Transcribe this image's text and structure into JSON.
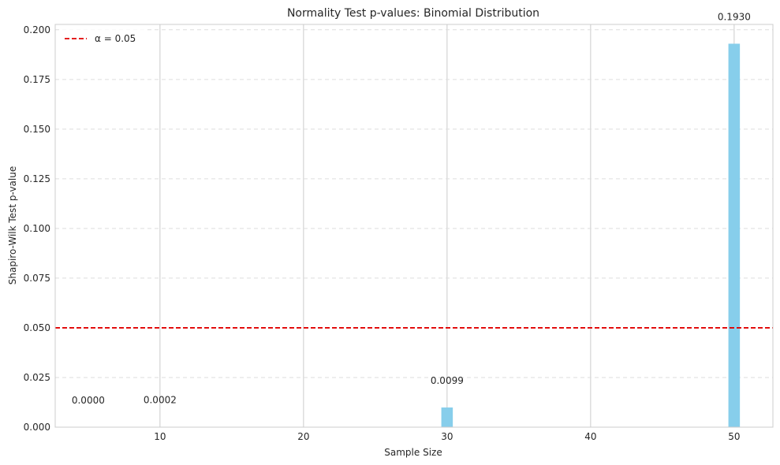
{
  "chart_data": {
    "type": "bar",
    "title": "Normality Test p-values: Binomial Distribution",
    "xlabel": "Sample Size",
    "ylabel": "Shapiro-Wilk Test p-value",
    "x": [
      5,
      10,
      30,
      50
    ],
    "values": [
      0.0,
      0.0002,
      0.0099,
      0.193
    ],
    "value_labels": [
      "0.0000",
      "0.0002",
      "0.0099",
      "0.1930"
    ],
    "xlim": [
      2.7,
      52.7
    ],
    "ylim": [
      0,
      0.2027
    ],
    "xticks": [
      10,
      20,
      30,
      40,
      50
    ],
    "xtick_labels": [
      "10",
      "20",
      "30",
      "40",
      "50"
    ],
    "yticks": [
      0.0,
      0.025,
      0.05,
      0.075,
      0.1,
      0.125,
      0.15,
      0.175,
      0.2
    ],
    "ytick_labels": [
      "0.000",
      "0.025",
      "0.050",
      "0.075",
      "0.100",
      "0.125",
      "0.150",
      "0.175",
      "0.200"
    ],
    "bar_width": 0.8,
    "bar_color": "#87CEEB",
    "reference_line": {
      "y": 0.05,
      "label": "α = 0.05",
      "color": "#e00000",
      "style": "dashed"
    },
    "legend_position": "upper-left",
    "grid": {
      "x": "solid",
      "y": "dashed"
    }
  }
}
